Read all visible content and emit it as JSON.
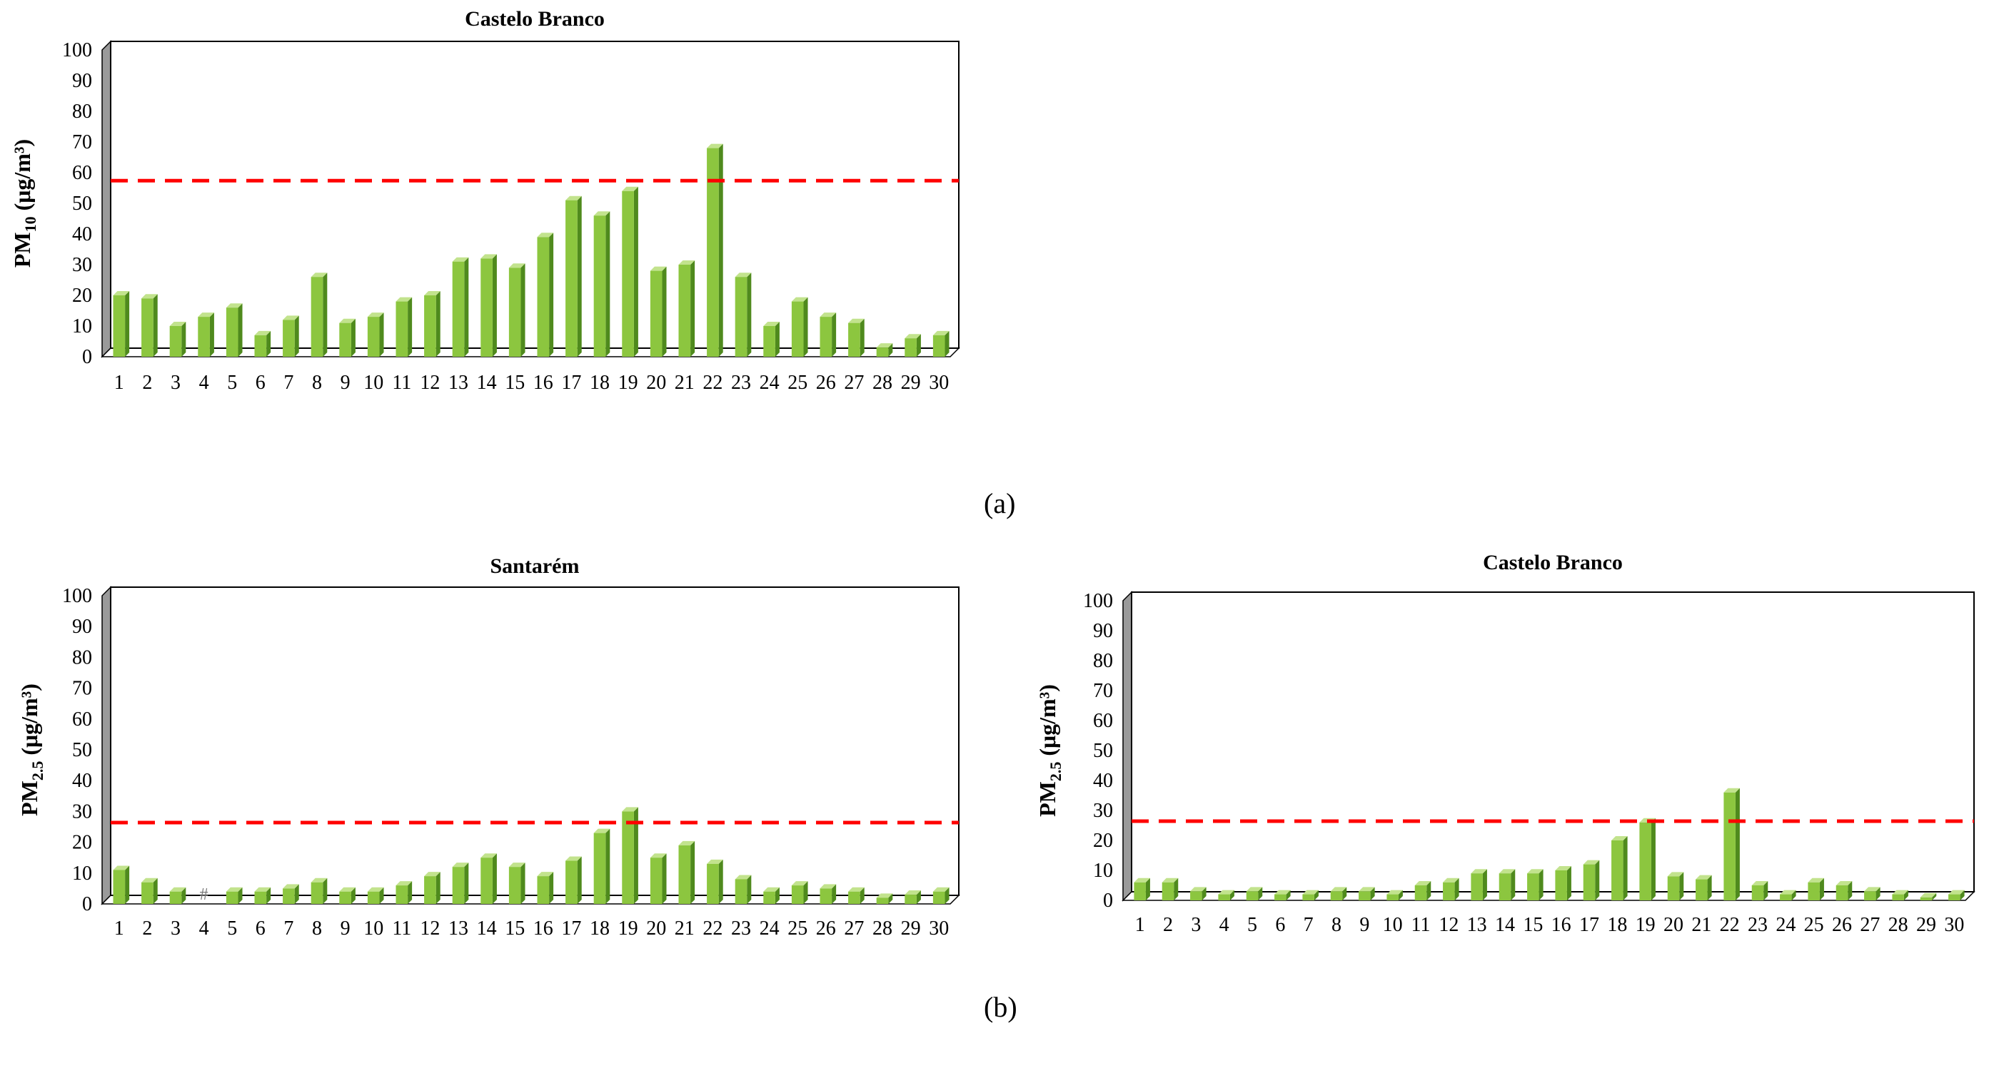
{
  "figure": {
    "panel_a_label": "(a)",
    "panel_b_label": "(b)"
  },
  "colors": {
    "bar_front": "#8cc63f",
    "bar_side": "#4f8a1d",
    "bar_top": "#c2e38d",
    "threshold": "#ff0000",
    "wall": "#9a9a9a",
    "axis": "#000000"
  },
  "chart_data": [
    {
      "id": "pm10-castelo-branco",
      "type": "bar",
      "title": "Castelo Branco",
      "ylabel_main": "PM",
      "ylabel_sub": "10",
      "ylabel_unit": " (μg/m³)",
      "ylim": [
        0,
        100
      ],
      "yticks": [
        0,
        10,
        20,
        30,
        40,
        50,
        60,
        70,
        80,
        90,
        100
      ],
      "threshold": 56,
      "categories": [
        "1",
        "2",
        "3",
        "4",
        "5",
        "6",
        "7",
        "8",
        "9",
        "10",
        "11",
        "12",
        "13",
        "14",
        "15",
        "16",
        "17",
        "18",
        "19",
        "20",
        "21",
        "22",
        "23",
        "24",
        "25",
        "26",
        "27",
        "28",
        "29",
        "30"
      ],
      "values": [
        20,
        19,
        10,
        13,
        16,
        7,
        12,
        26,
        11,
        13,
        18,
        20,
        31,
        32,
        29,
        39,
        51,
        46,
        54,
        28,
        30,
        68,
        26,
        10,
        18,
        13,
        11,
        3,
        6,
        7
      ],
      "missing_marker": "#"
    },
    {
      "id": "pm25-santarem",
      "type": "bar",
      "title": "Santarém",
      "ylabel_main": "PM",
      "ylabel_sub": "2.5",
      "ylabel_unit": " (μg/m³)",
      "ylim": [
        0,
        100
      ],
      "yticks": [
        0,
        10,
        20,
        30,
        40,
        50,
        60,
        70,
        80,
        90,
        100
      ],
      "threshold": 25,
      "categories": [
        "1",
        "2",
        "3",
        "4",
        "5",
        "6",
        "7",
        "8",
        "9",
        "10",
        "11",
        "12",
        "13",
        "14",
        "15",
        "16",
        "17",
        "18",
        "19",
        "20",
        "21",
        "22",
        "23",
        "24",
        "25",
        "26",
        "27",
        "28",
        "29",
        "30"
      ],
      "values": [
        11,
        7,
        4,
        null,
        4,
        4,
        5,
        7,
        4,
        4,
        6,
        9,
        12,
        15,
        12,
        9,
        14,
        23,
        30,
        15,
        19,
        13,
        8,
        4,
        6,
        5,
        4,
        2,
        3,
        4
      ],
      "missing_marker": "#"
    },
    {
      "id": "pm25-castelo-branco",
      "type": "bar",
      "title": "Castelo Branco",
      "ylabel_main": "PM",
      "ylabel_sub": "2.5",
      "ylabel_unit": " (μg/m³)",
      "ylim": [
        0,
        100
      ],
      "yticks": [
        0,
        10,
        20,
        30,
        40,
        50,
        60,
        70,
        80,
        90,
        100
      ],
      "threshold": 25,
      "categories": [
        "1",
        "2",
        "3",
        "4",
        "5",
        "6",
        "7",
        "8",
        "9",
        "10",
        "11",
        "12",
        "13",
        "14",
        "15",
        "16",
        "17",
        "18",
        "19",
        "20",
        "21",
        "22",
        "23",
        "24",
        "25",
        "26",
        "27",
        "28",
        "29",
        "30"
      ],
      "values": [
        6,
        6,
        3,
        2,
        3,
        2,
        2,
        3,
        3,
        2,
        5,
        6,
        9,
        9,
        9,
        10,
        12,
        20,
        26,
        8,
        7,
        36,
        5,
        2,
        6,
        5,
        3,
        2,
        1,
        2
      ],
      "missing_marker": "#"
    }
  ]
}
